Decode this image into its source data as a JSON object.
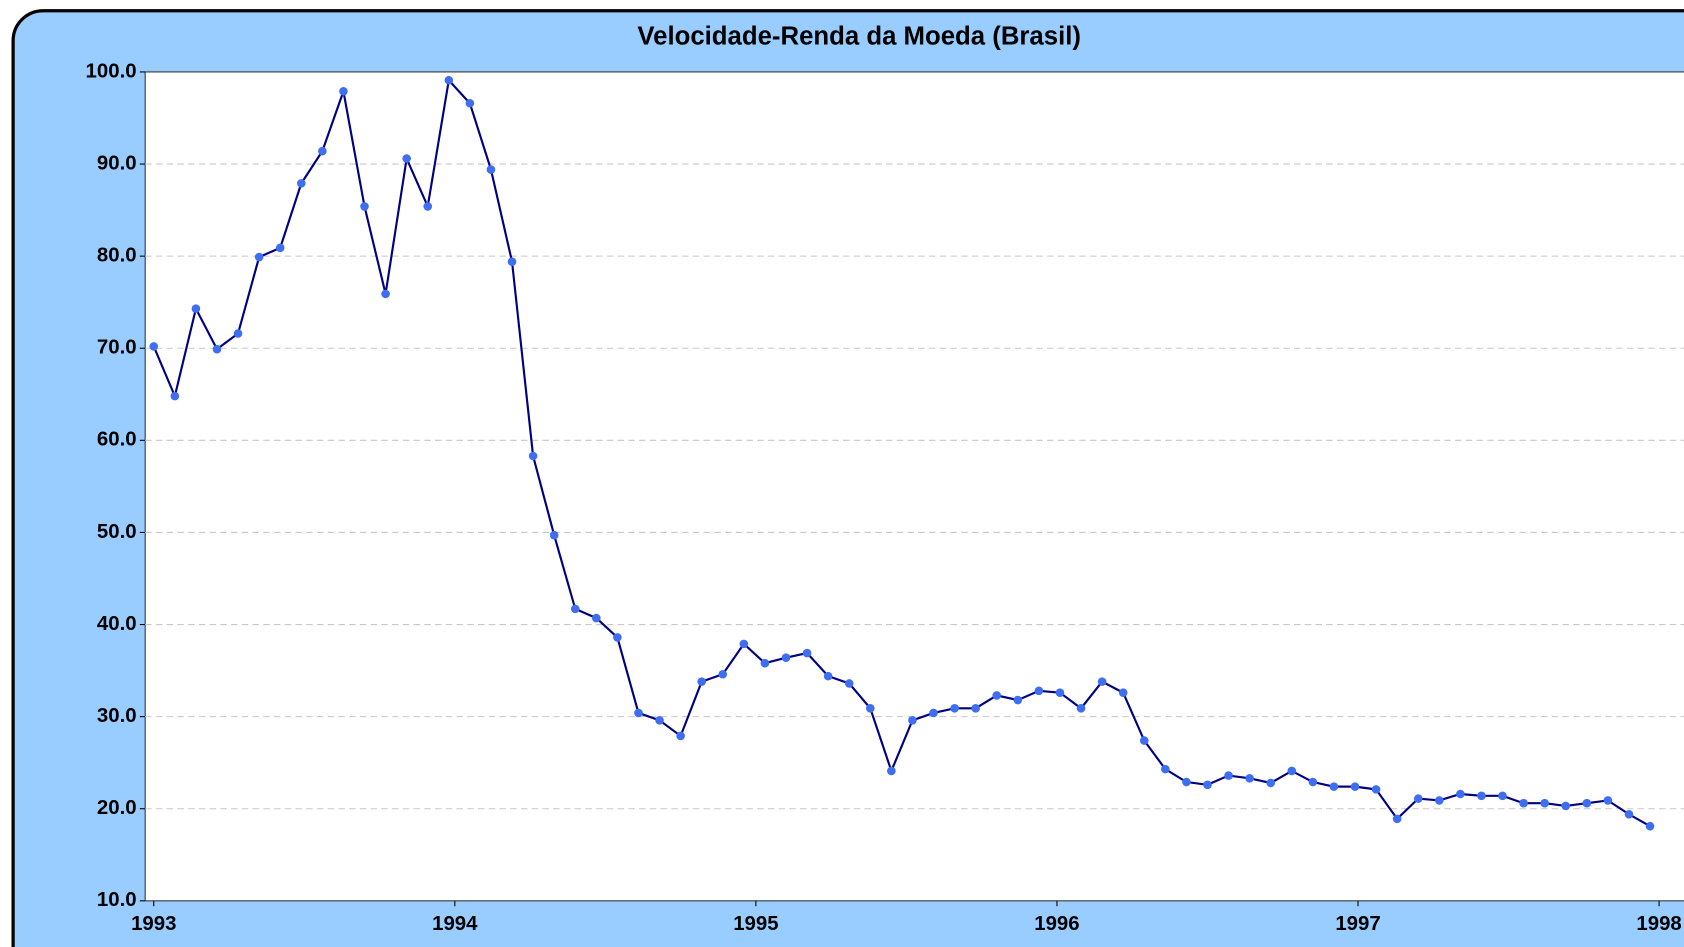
{
  "chart_data": {
    "type": "line",
    "title": "Velocidade-Renda da Moeda (Brasil)",
    "x": [
      1993,
      1993.07,
      1993.14,
      1993.21,
      1993.28,
      1993.35,
      1993.42,
      1993.49,
      1993.56,
      1993.63,
      1993.7,
      1993.77,
      1993.84,
      1993.91,
      1993.98,
      1994.05,
      1994.12,
      1994.19,
      1994.26,
      1994.33,
      1994.4,
      1994.47,
      1994.54,
      1994.61,
      1994.68,
      1994.75,
      1994.82,
      1994.89,
      1994.96,
      1995.03,
      1995.1,
      1995.17,
      1995.24,
      1995.31,
      1995.38,
      1995.45,
      1995.52,
      1995.59,
      1995.66,
      1995.73,
      1995.8,
      1995.87,
      1995.94,
      1996.01,
      1996.08,
      1996.15,
      1996.22,
      1996.29,
      1996.36,
      1996.43,
      1996.5,
      1996.57,
      1996.64,
      1996.71,
      1996.78,
      1996.85,
      1996.92,
      1996.99,
      1997.06,
      1997.13,
      1997.2,
      1997.27,
      1997.34,
      1997.41,
      1997.48,
      1997.55,
      1997.62,
      1997.69,
      1997.76,
      1997.83,
      1997.9,
      1997.97
    ],
    "series": [
      {
        "color": "#000080",
        "marker_color": "#3f6ef0",
        "values": [
          70.2,
          64.8,
          74.3,
          69.9,
          71.6,
          79.9,
          80.9,
          87.9,
          91.4,
          97.9,
          85.4,
          75.9,
          90.6,
          85.4,
          99.1,
          96.6,
          89.4,
          79.4,
          58.3,
          49.7,
          41.7,
          40.7,
          38.6,
          30.4,
          29.6,
          27.9,
          33.8,
          34.6,
          37.9,
          35.8,
          36.4,
          36.9,
          34.4,
          33.6,
          30.9,
          24.1,
          29.6,
          30.4,
          30.9,
          30.9,
          32.3,
          31.8,
          32.8,
          32.6,
          30.9,
          33.8,
          32.6,
          27.4,
          24.3,
          22.9,
          22.6,
          23.6,
          23.3,
          22.8,
          24.1,
          22.9,
          22.4,
          22.4,
          22.1,
          18.9,
          21.1,
          20.9,
          21.6,
          21.4,
          21.4,
          20.6,
          20.6,
          20.3,
          20.6,
          20.9,
          19.4,
          18.1
        ]
      }
    ],
    "xlim": [
      1993,
      1998
    ],
    "xticks": [
      1993,
      1994,
      1995,
      1996,
      1997,
      1998
    ],
    "ylim": [
      10,
      100
    ],
    "yticks": [
      {
        "value": 10,
        "label": "10.0"
      },
      {
        "value": 20,
        "label": "20.0"
      },
      {
        "value": 30,
        "label": "30.0"
      },
      {
        "value": 40,
        "label": "40.0"
      },
      {
        "value": 50,
        "label": "50.0"
      },
      {
        "value": 60,
        "label": "60.0"
      },
      {
        "value": 70,
        "label": "70.0"
      },
      {
        "value": 80,
        "label": "80.0"
      },
      {
        "value": 90,
        "label": "90.0"
      },
      {
        "value": 100,
        "label": "100.0"
      }
    ],
    "grid": true
  }
}
